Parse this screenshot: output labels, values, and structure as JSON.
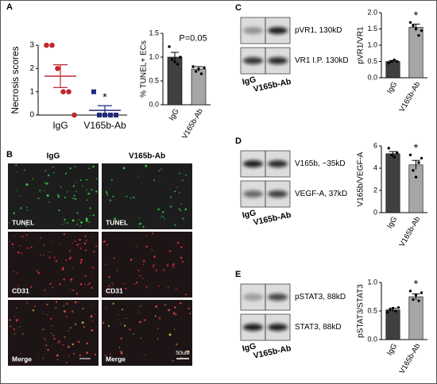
{
  "figure": {
    "microscopy": {
      "label": "B",
      "columns": [
        "IgG",
        "V165b-Ab"
      ],
      "rows": [
        "TUNEL",
        "CD31",
        "Merge"
      ],
      "scale_bar": "50uM"
    },
    "blots": [
      {
        "label": "C",
        "bands": [
          "pVR1, 130kD",
          "VR1 I.P. 130kD"
        ],
        "lanes": [
          "IgG",
          "V165b-Ab"
        ]
      },
      {
        "label": "D",
        "bands": [
          "V165b, ~35kD",
          "VEGF-A, 37kD"
        ],
        "lanes": [
          "IgG",
          "V165b-Ab"
        ]
      },
      {
        "label": "E",
        "bands": [
          "pSTAT3, 88kD",
          "STAT3, 88kD"
        ],
        "lanes": [
          "IgG",
          "V165b-Ab"
        ]
      }
    ]
  },
  "chart_data": [
    {
      "type": "dotplot",
      "panel_label": "A",
      "ylabel": "Necrosis scores",
      "categories": [
        "IgG",
        "V165b-Ab"
      ],
      "values": [
        [
          3,
          3,
          2,
          1,
          1,
          0
        ],
        [
          1,
          0,
          0,
          0,
          0
        ]
      ],
      "means": [
        1.67,
        0.2
      ],
      "errors": [
        0.49,
        0.2
      ],
      "colors": [
        "#c0282d",
        "#1f2a7a"
      ],
      "markers": [
        "circle",
        "square"
      ],
      "annotation": "*",
      "ylim": [
        0,
        3
      ],
      "yticks": [
        0,
        1,
        2,
        3
      ]
    },
    {
      "type": "bar",
      "ylabel": "% TUNEL+ ECs",
      "categories": [
        "IgG",
        "V165b-Ab"
      ],
      "values": [
        1.0,
        0.75
      ],
      "errors": [
        0.1,
        0.05
      ],
      "points": [
        [
          1.22,
          0.95,
          0.9,
          0.85,
          1.0
        ],
        [
          0.8,
          0.7,
          0.75,
          0.65,
          0.78
        ]
      ],
      "colors": [
        "#404040",
        "#a6a6a6"
      ],
      "annotation": "P=0.05",
      "ylim": [
        0,
        1.5
      ],
      "yticks": [
        {
          "value": 0,
          "label": "0.0"
        },
        0.5,
        {
          "value": 1,
          "label": "1.0"
        },
        1.5
      ]
    },
    {
      "type": "bar",
      "ylabel": "pVR1/VR1",
      "categories": [
        "IgG",
        "V165b-Ab"
      ],
      "values": [
        0.5,
        1.55
      ],
      "errors": [
        0.03,
        0.1
      ],
      "points": [
        [
          0.45,
          0.5,
          0.55,
          0.5
        ],
        [
          1.7,
          1.6,
          1.5,
          1.3,
          1.45
        ]
      ],
      "colors": [
        "#404040",
        "#a6a6a6"
      ],
      "annotation": "*",
      "ylim": [
        0,
        2
      ],
      "yticks": [
        {
          "value": 0,
          "label": "0.0"
        },
        0.5,
        {
          "value": 1,
          "label": "1.0"
        },
        1.5,
        {
          "value": 2,
          "label": "2.0"
        }
      ]
    },
    {
      "type": "bar",
      "ylabel": "V165b/VEGF-A",
      "categories": [
        "IgG",
        "V165b-Ab"
      ],
      "values": [
        5.3,
        4.3
      ],
      "errors": [
        0.2,
        0.4
      ],
      "points": [
        [
          5.8,
          5.2,
          5.0,
          5.4
        ],
        [
          5.2,
          3.8,
          3.2,
          4.5,
          4.9
        ]
      ],
      "colors": [
        "#404040",
        "#a6a6a6"
      ],
      "annotation": "*",
      "ylim": [
        0,
        6
      ],
      "yticks": [
        0,
        2,
        4,
        6
      ]
    },
    {
      "type": "bar",
      "ylabel": "pSTAT3/STAT3",
      "categories": [
        "IgG",
        "V165b-Ab"
      ],
      "values": [
        0.52,
        0.75
      ],
      "errors": [
        0.03,
        0.05
      ],
      "points": [
        [
          0.48,
          0.52,
          0.55,
          0.5,
          0.56
        ],
        [
          0.85,
          0.7,
          0.78,
          0.68,
          0.82
        ]
      ],
      "colors": [
        "#404040",
        "#a6a6a6"
      ],
      "annotation": "*",
      "ylim": [
        0,
        1
      ],
      "yticks": [
        {
          "value": 0,
          "label": "0.0"
        },
        0.5,
        {
          "value": 1,
          "label": "1.0"
        }
      ]
    }
  ]
}
